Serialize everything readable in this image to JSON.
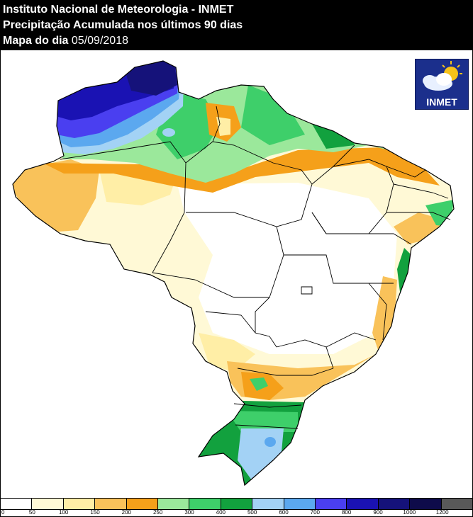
{
  "header": {
    "line1": "Instituto Nacional de Meteorologia - INMET",
    "line2": "Precipitação Acumulada nos últimos 90 dias",
    "line3_label": "Mapa do dia",
    "line3_date": "05/09/2018"
  },
  "logo": {
    "icon": "cloud-sun-icon",
    "text": "INMET"
  },
  "legend": {
    "colors": [
      "#ffffff",
      "#fff9d6",
      "#ffeea6",
      "#f9c25a",
      "#f5a01a",
      "#9be89b",
      "#3ecf6a",
      "#12a13e",
      "#a3d2f5",
      "#5ba8ef",
      "#4a3ff0",
      "#1a12b3",
      "#15127a",
      "#0e0b4a",
      "#595959"
    ],
    "ticks": [
      "0",
      "50",
      "100",
      "150",
      "200",
      "250",
      "300",
      "400",
      "500",
      "600",
      "700",
      "800",
      "900",
      "1000",
      "1200"
    ]
  }
}
